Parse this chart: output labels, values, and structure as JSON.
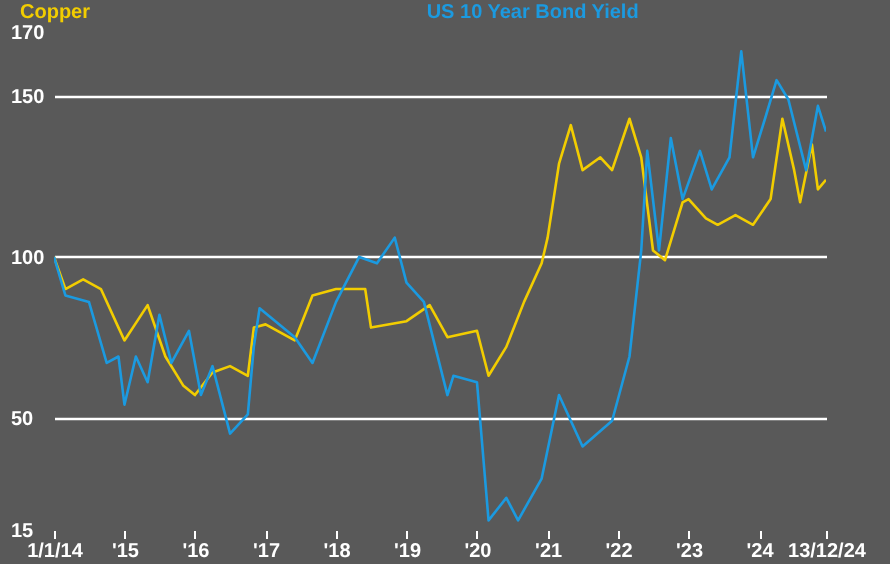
{
  "chart_data": {
    "type": "line",
    "series": [
      {
        "name": "Copper",
        "color": "#f2cd00",
        "x": [
          "2014-01-01",
          "2014-03",
          "2014-06",
          "2014-09",
          "2014-12",
          "2015-01",
          "2015-05",
          "2015-08",
          "2015-11",
          "2016-01",
          "2016-04",
          "2016-07",
          "2016-10",
          "2016-11",
          "2017-01",
          "2017-06",
          "2017-09",
          "2018-01",
          "2018-06",
          "2018-07",
          "2019-01",
          "2019-05",
          "2019-08",
          "2020-01",
          "2020-03",
          "2020-06",
          "2020-09",
          "2020-12",
          "2021-01",
          "2021-03",
          "2021-05",
          "2021-07",
          "2021-10",
          "2021-12",
          "2022-03",
          "2022-05",
          "2022-07",
          "2022-09",
          "2022-12",
          "2023-01",
          "2023-04",
          "2023-06",
          "2023-09",
          "2023-12",
          "2024-03",
          "2024-05",
          "2024-07",
          "2024-08",
          "2024-10",
          "2024-11",
          "2024-12-13"
        ],
        "values": [
          100,
          90,
          93,
          90,
          78,
          74,
          85,
          69,
          60,
          57,
          64,
          66,
          63,
          78,
          79,
          74,
          88,
          90,
          90,
          78,
          80,
          85,
          75,
          77,
          63,
          72,
          86,
          98,
          106,
          129,
          141,
          127,
          131,
          127,
          143,
          131,
          102,
          99,
          117,
          118,
          112,
          110,
          113,
          110,
          118,
          143,
          127,
          117,
          135,
          121,
          124
        ]
      },
      {
        "name": "US 10 Year Bond Yield",
        "color": "#1b9ae0",
        "x": [
          "2014-01-01",
          "2014-03",
          "2014-07",
          "2014-10",
          "2014-12",
          "2015-01",
          "2015-03",
          "2015-05",
          "2015-07",
          "2015-09",
          "2015-12",
          "2016-02",
          "2016-04",
          "2016-07",
          "2016-10",
          "2016-11",
          "2016-12",
          "2017-06",
          "2017-09",
          "2018-01",
          "2018-05",
          "2018-08",
          "2018-11",
          "2019-01",
          "2019-04",
          "2019-08",
          "2019-09",
          "2020-01",
          "2020-03",
          "2020-06",
          "2020-08",
          "2020-12",
          "2021-03",
          "2021-07",
          "2021-12",
          "2022-03",
          "2022-05",
          "2022-06",
          "2022-08",
          "2022-10",
          "2022-12",
          "2023-03",
          "2023-05",
          "2023-08",
          "2023-10",
          "2023-12",
          "2024-02",
          "2024-04",
          "2024-06",
          "2024-09",
          "2024-11",
          "2024-12-13"
        ],
        "values": [
          100,
          88,
          86,
          67,
          69,
          54,
          69,
          61,
          82,
          67,
          77,
          57,
          66,
          45,
          51,
          72,
          84,
          75,
          67,
          86,
          100,
          98,
          106,
          92,
          86,
          57,
          63,
          61,
          18,
          25,
          18,
          31,
          57,
          41,
          49,
          69,
          102,
          133,
          102,
          137,
          118,
          133,
          121,
          131,
          164,
          131,
          143,
          155,
          149,
          127,
          147,
          139
        ]
      }
    ],
    "xlim": [
      "2014-01-01",
      "2024-12-13"
    ],
    "xticks": [
      {
        "value": "2014-01-01",
        "label": "1/1/14"
      },
      {
        "value": "2015-01-01",
        "label": "'15"
      },
      {
        "value": "2016-01-01",
        "label": "'16"
      },
      {
        "value": "2017-01-01",
        "label": "'17"
      },
      {
        "value": "2018-01-01",
        "label": "'18"
      },
      {
        "value": "2019-01-01",
        "label": "'19"
      },
      {
        "value": "2020-01-01",
        "label": "'20"
      },
      {
        "value": "2021-01-01",
        "label": "'21"
      },
      {
        "value": "2022-01-01",
        "label": "'22"
      },
      {
        "value": "2023-01-01",
        "label": "'23"
      },
      {
        "value": "2024-01-01",
        "label": "'24"
      },
      {
        "value": "2024-12-13",
        "label": "13/12/24"
      }
    ],
    "ylim": [
      15,
      170
    ],
    "yticks": [
      15,
      50,
      100,
      150,
      170
    ],
    "grid": "y"
  }
}
